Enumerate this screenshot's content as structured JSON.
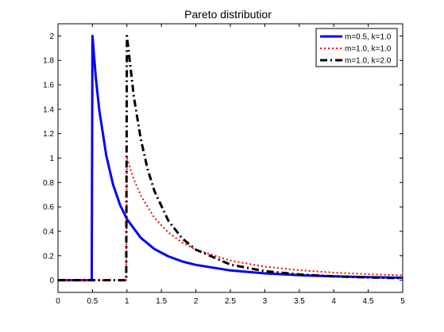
{
  "chart_data": {
    "type": "line",
    "title": "Pareto distributior",
    "xlabel": "",
    "ylabel": "",
    "xlim": [
      0,
      5
    ],
    "ylim": [
      -0.1,
      2.1
    ],
    "xticks": [
      0,
      0.5,
      1,
      1.5,
      2,
      2.5,
      3,
      3.5,
      4,
      4.5,
      5
    ],
    "xtick_labels": [
      "0",
      "0.5",
      "1",
      "1.5",
      "2",
      "2.5",
      "3",
      "3.5",
      "4",
      "4.5",
      "5"
    ],
    "yticks": [
      0,
      0.2,
      0.4,
      0.6,
      0.8,
      1,
      1.2,
      1.4,
      1.6,
      1.8,
      2
    ],
    "ytick_labels": [
      "0",
      "0.2",
      "0.4",
      "0.6",
      "0.8",
      "1",
      "1.2",
      "1.4",
      "1.6",
      "1.8",
      "2"
    ],
    "grid": false,
    "legend_position": "top-right",
    "series": [
      {
        "name": "m=0.5, k=1.0",
        "color": "#0000ff",
        "style": "solid",
        "x": [
          0,
          0.49,
          0.5,
          0.55,
          0.6,
          0.7,
          0.8,
          0.9,
          1.0,
          1.2,
          1.4,
          1.6,
          1.8,
          2.0,
          2.5,
          3.0,
          3.5,
          4.0,
          4.5,
          5.0
        ],
        "y": [
          0,
          0,
          2.0,
          1.653,
          1.389,
          1.02,
          0.781,
          0.617,
          0.5,
          0.347,
          0.255,
          0.195,
          0.154,
          0.125,
          0.08,
          0.056,
          0.041,
          0.031,
          0.025,
          0.02
        ]
      },
      {
        "name": "m=1.0, k=1.0",
        "color": "#ff0000",
        "style": "dotted",
        "x": [
          0,
          0.99,
          1.0,
          1.1,
          1.2,
          1.4,
          1.6,
          1.8,
          2.0,
          2.5,
          3.0,
          3.5,
          4.0,
          4.5,
          5.0
        ],
        "y": [
          0,
          0,
          1.0,
          0.826,
          0.694,
          0.51,
          0.391,
          0.309,
          0.25,
          0.16,
          0.111,
          0.082,
          0.0625,
          0.049,
          0.04
        ]
      },
      {
        "name": "m=1.0, k=2.0",
        "color": "#000000",
        "style": "dashdot",
        "x": [
          0,
          0.99,
          1.0,
          1.1,
          1.2,
          1.3,
          1.4,
          1.6,
          1.8,
          2.0,
          2.5,
          3.0,
          3.5,
          4.0,
          4.5,
          5.0
        ],
        "y": [
          0,
          0,
          2.0,
          1.503,
          1.157,
          0.91,
          0.729,
          0.488,
          0.343,
          0.25,
          0.128,
          0.074,
          0.047,
          0.031,
          0.022,
          0.016
        ]
      }
    ]
  }
}
